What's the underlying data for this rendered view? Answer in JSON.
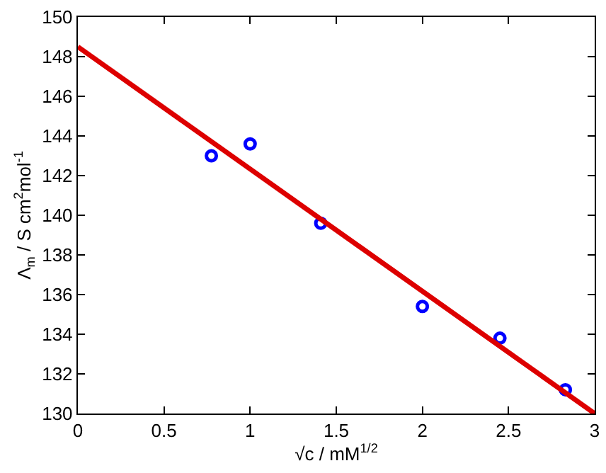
{
  "chart_data": {
    "type": "scatter",
    "xlabel": "√c / mM$^{1/2}$",
    "ylabel": "Λ$_{m}$ / S cm$^{2}$mol$^{-1}$",
    "series": [
      {
        "color": "#0000ff",
        "marker": "circle",
        "x": [
          0.775,
          1.0,
          1.41,
          2.0,
          2.45,
          2.83
        ],
        "values": [
          143.0,
          143.6,
          139.6,
          135.4,
          133.8,
          131.2
        ]
      },
      {
        "type": "line",
        "color": "#dd0000",
        "marker": "none",
        "line_style": "solid",
        "x": [
          0,
          3
        ],
        "values": [
          148.5,
          130.0
        ]
      }
    ],
    "xlim": [
      0,
      3
    ],
    "xticks": [
      0,
      0.5,
      1,
      1.5,
      2,
      2.5,
      3
    ],
    "ylim": [
      130,
      150
    ],
    "yticks": [
      130,
      132,
      134,
      136,
      138,
      140,
      142,
      144,
      146,
      148,
      150
    ],
    "grid": false
  }
}
